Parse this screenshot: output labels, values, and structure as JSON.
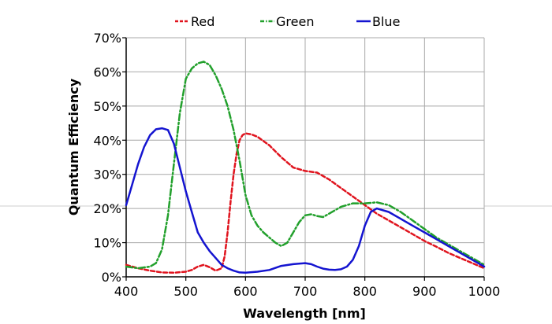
{
  "chart_data": {
    "type": "line",
    "xlabel": "Wavelength [nm]",
    "ylabel": "Quantum Efficiency",
    "xlim": [
      400,
      1000
    ],
    "ylim": [
      0,
      70
    ],
    "x_ticks": [
      400,
      500,
      600,
      700,
      800,
      900,
      1000
    ],
    "y_ticks": [
      0,
      10,
      20,
      30,
      40,
      50,
      60,
      70
    ],
    "x_tick_labels": [
      "400",
      "500",
      "600",
      "700",
      "800",
      "900",
      "1000"
    ],
    "y_tick_labels": [
      "0%",
      "10%",
      "20%",
      "30%",
      "40%",
      "50%",
      "60%",
      "70%"
    ],
    "grid": true,
    "legend_position": "top",
    "series": [
      {
        "name": "Red",
        "color": "#e0141e",
        "dash": "dashed",
        "x": [
          400,
          420,
          440,
          460,
          480,
          500,
          510,
          520,
          530,
          540,
          550,
          560,
          565,
          570,
          575,
          580,
          585,
          590,
          595,
          600,
          610,
          620,
          640,
          660,
          680,
          700,
          720,
          740,
          760,
          780,
          800,
          820,
          840,
          860,
          880,
          900,
          920,
          940,
          960,
          980,
          1000
        ],
        "y": [
          3.5,
          2.5,
          1.8,
          1.3,
          1.2,
          1.5,
          2,
          3,
          3.5,
          2.8,
          1.8,
          2.5,
          6,
          13,
          22,
          30,
          36,
          40,
          41.5,
          42,
          41.7,
          41,
          38.5,
          35,
          32,
          31,
          30.5,
          28.5,
          26,
          23.5,
          21,
          18.5,
          16.5,
          14.5,
          12.5,
          10.5,
          8.8,
          7,
          5.5,
          4,
          2.5
        ]
      },
      {
        "name": "Green",
        "color": "#22a02c",
        "dash": "dash-dot",
        "x": [
          400,
          420,
          440,
          450,
          460,
          470,
          480,
          490,
          500,
          510,
          520,
          530,
          540,
          550,
          560,
          570,
          580,
          590,
          600,
          610,
          620,
          630,
          640,
          650,
          660,
          670,
          680,
          690,
          700,
          710,
          720,
          730,
          740,
          760,
          780,
          800,
          820,
          840,
          860,
          880,
          900,
          920,
          940,
          960,
          980,
          1000
        ],
        "y": [
          3,
          2.5,
          3,
          4,
          8,
          18,
          33,
          48,
          58,
          61,
          62.5,
          63,
          62,
          59,
          55,
          50,
          43,
          34,
          24,
          18,
          15,
          13,
          11.5,
          10,
          9,
          10,
          13,
          16,
          18,
          18.3,
          17.8,
          17.5,
          18.5,
          20.5,
          21.5,
          21.5,
          21.8,
          21,
          19,
          16.5,
          14,
          11.5,
          9.5,
          7.5,
          5.5,
          3.5
        ]
      },
      {
        "name": "Blue",
        "color": "#1414d0",
        "dash": "solid",
        "x": [
          400,
          410,
          420,
          430,
          440,
          450,
          460,
          470,
          480,
          490,
          500,
          510,
          520,
          530,
          540,
          550,
          560,
          570,
          580,
          590,
          600,
          620,
          640,
          660,
          680,
          700,
          710,
          720,
          730,
          740,
          750,
          760,
          770,
          780,
          790,
          800,
          810,
          820,
          840,
          860,
          880,
          900,
          920,
          940,
          960,
          980,
          1000
        ],
        "y": [
          21,
          27,
          33,
          38,
          41.5,
          43.2,
          43.5,
          43,
          39,
          32,
          25,
          19,
          13,
          10,
          7.5,
          5.5,
          3.5,
          2.5,
          1.8,
          1.3,
          1.2,
          1.5,
          2,
          3.2,
          3.7,
          4,
          3.7,
          3,
          2.4,
          2.1,
          2,
          2.2,
          3,
          5,
          9,
          15,
          19,
          20,
          19,
          17,
          15,
          13,
          11,
          9,
          7,
          5,
          3
        ]
      }
    ]
  }
}
